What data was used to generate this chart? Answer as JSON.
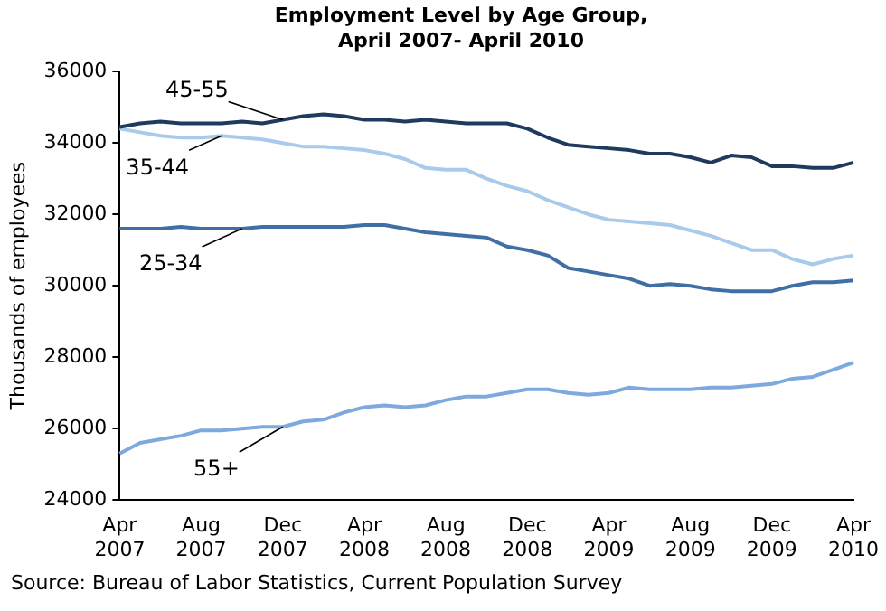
{
  "chart_data": {
    "type": "line",
    "title": "Employment Level by Age Group, April 2007- April 2010",
    "ylabel": "Thousands of employees",
    "categories": [
      "Apr 2007",
      null,
      null,
      null,
      "Aug 2007",
      null,
      null,
      null,
      "Dec 2007",
      null,
      null,
      null,
      "Apr 2008",
      null,
      null,
      null,
      "Aug 2008",
      null,
      null,
      null,
      "Dec 2008",
      null,
      null,
      null,
      "Apr 2009",
      null,
      null,
      null,
      "Aug 2009",
      null,
      null,
      null,
      "Dec 2009",
      null,
      null,
      null,
      "Apr 2010"
    ],
    "series": [
      {
        "name": "45-55",
        "color": "#1f3a5c",
        "values": [
          34450,
          34550,
          34600,
          34550,
          34550,
          34550,
          34600,
          34550,
          34650,
          34750,
          34800,
          34750,
          34650,
          34650,
          34600,
          34650,
          34600,
          34550,
          34550,
          34550,
          34400,
          34150,
          33950,
          33900,
          33850,
          33800,
          33700,
          33700,
          33600,
          33450,
          33650,
          33600,
          33350,
          33350,
          33300,
          33300,
          33450
        ]
      },
      {
        "name": "35-44",
        "color": "#a9cbeb",
        "values": [
          34400,
          34300,
          34200,
          34150,
          34150,
          34200,
          34150,
          34100,
          34000,
          33900,
          33900,
          33850,
          33800,
          33700,
          33550,
          33300,
          33250,
          33250,
          33000,
          32800,
          32650,
          32400,
          32200,
          32000,
          31850,
          31800,
          31750,
          31700,
          31550,
          31400,
          31200,
          31000,
          31000,
          30750,
          30600,
          30750,
          30850
        ]
      },
      {
        "name": "25-34",
        "color": "#3f6fa5",
        "values": [
          31600,
          31600,
          31600,
          31650,
          31600,
          31600,
          31600,
          31650,
          31650,
          31650,
          31650,
          31650,
          31700,
          31700,
          31600,
          31500,
          31450,
          31400,
          31350,
          31100,
          31000,
          30850,
          30500,
          30400,
          30300,
          30200,
          30000,
          30050,
          30000,
          29900,
          29850,
          29850,
          29850,
          30000,
          30100,
          30100,
          30150
        ]
      },
      {
        "name": "55+",
        "color": "#7ea9dc",
        "values": [
          25300,
          25600,
          25700,
          25800,
          25950,
          25950,
          26000,
          26050,
          26050,
          26200,
          26250,
          26450,
          26600,
          26650,
          26600,
          26650,
          26800,
          26900,
          26900,
          27000,
          27100,
          27100,
          27000,
          26950,
          27000,
          27150,
          27100,
          27100,
          27100,
          27150,
          27150,
          27200,
          27250,
          27400,
          27450,
          27650,
          27850
        ]
      }
    ],
    "ylim": [
      24000,
      36000
    ],
    "yticks": [
      24000,
      26000,
      28000,
      30000,
      32000,
      34000,
      36000
    ],
    "grid": false,
    "legend": false,
    "marker": "none",
    "line_style": "solid",
    "annotations": [
      "Source: Bureau of Labor Statistics, Current Population Survey"
    ]
  }
}
